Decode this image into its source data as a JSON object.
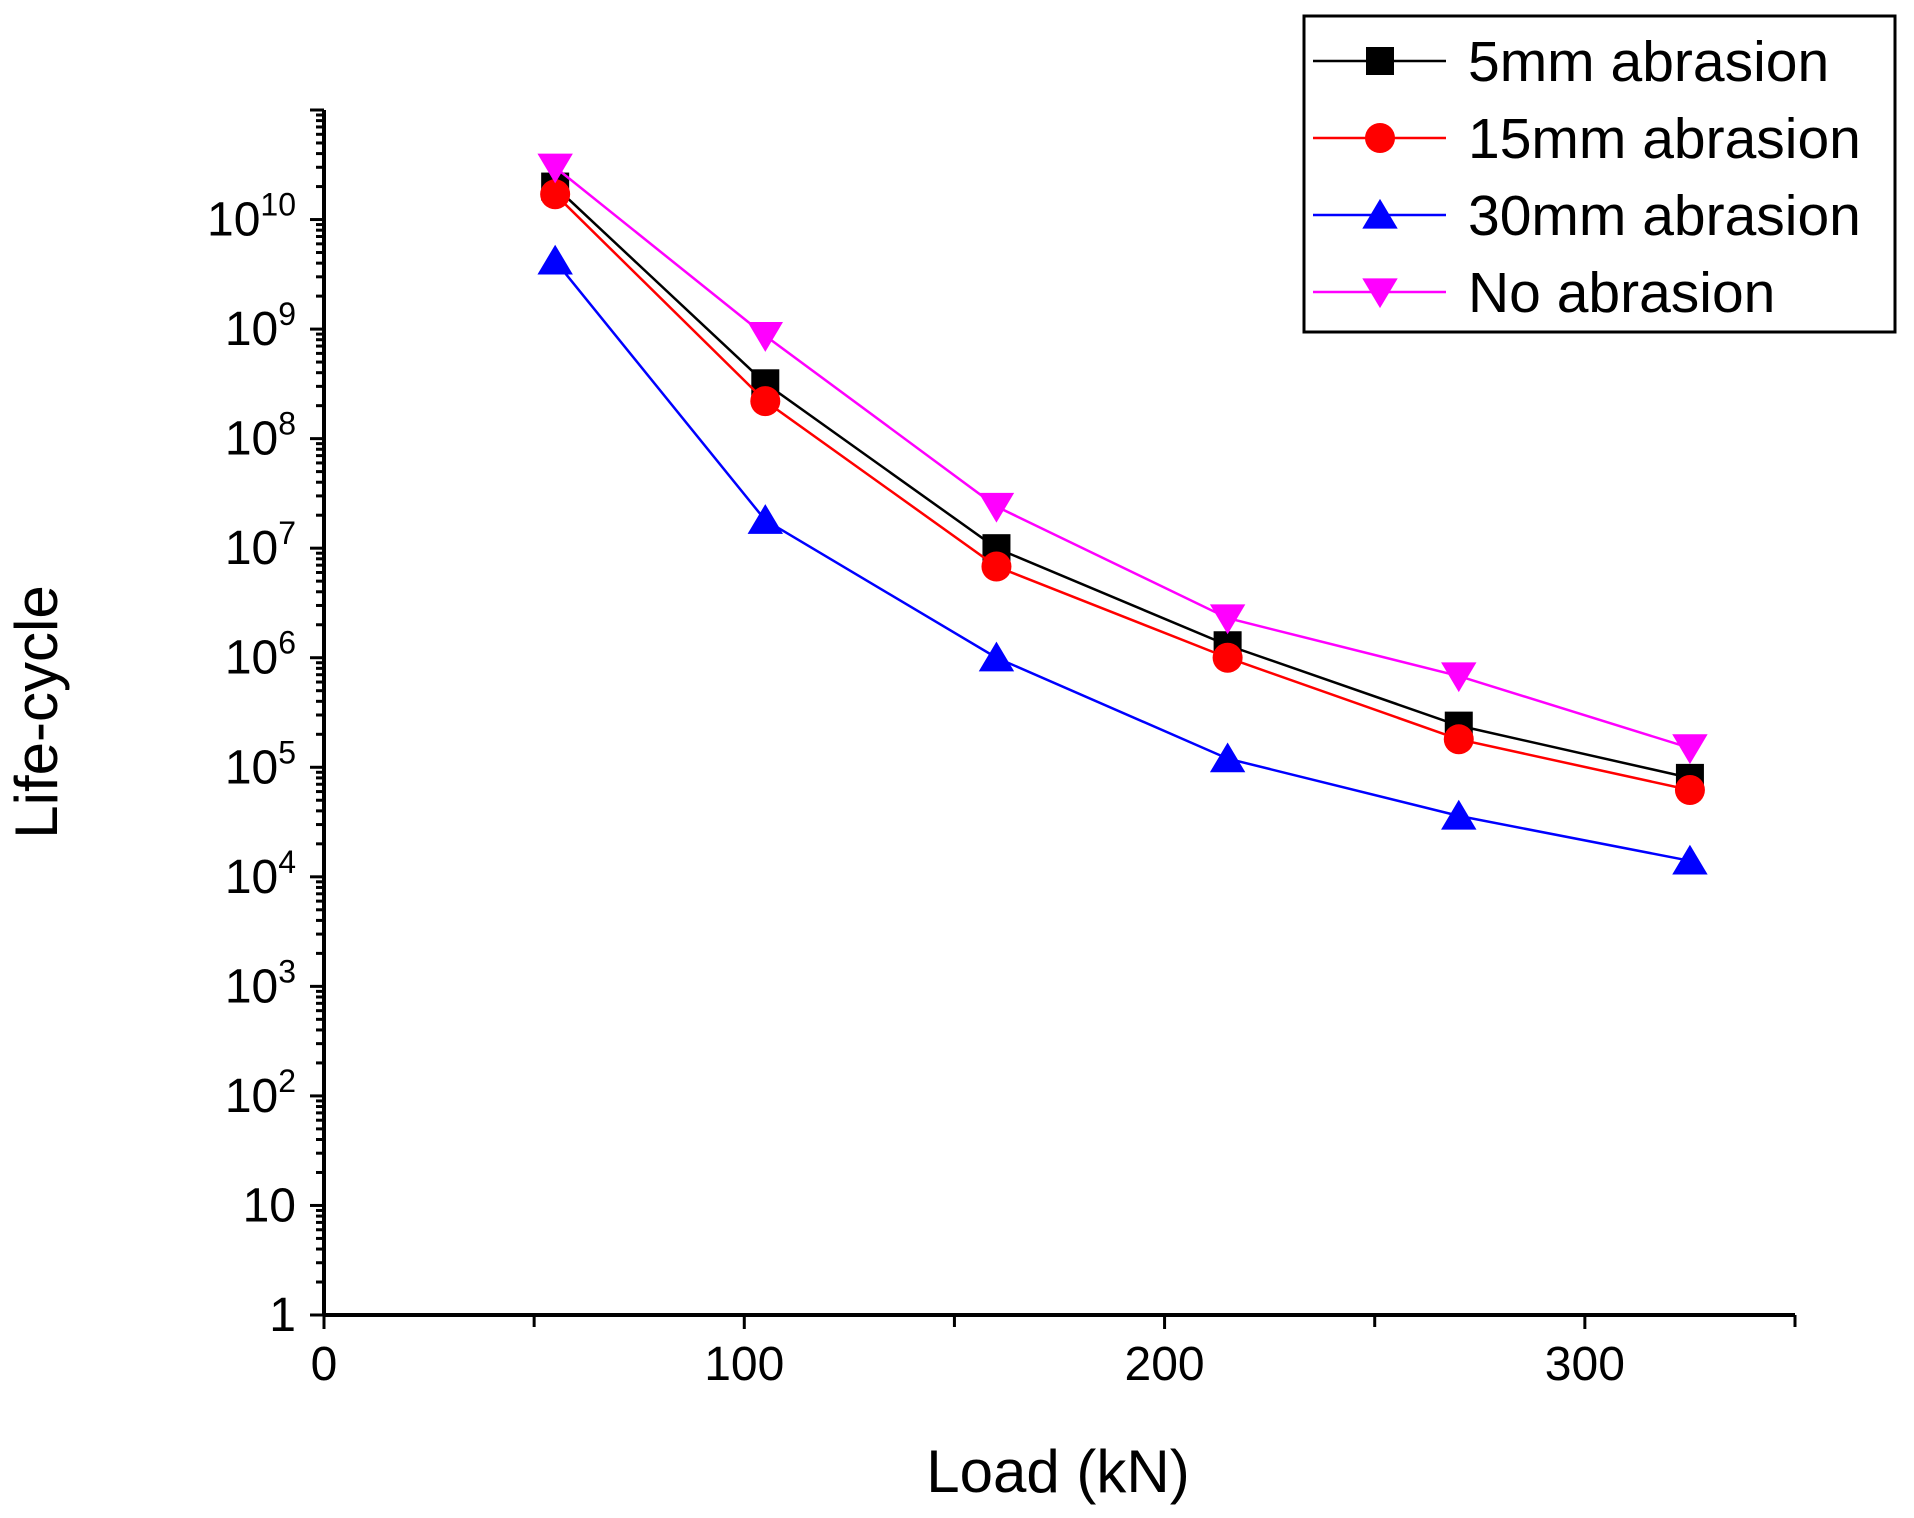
{
  "chart_data": {
    "type": "line",
    "title": "",
    "xlabel": "Load (kN)",
    "ylabel": "Life-cycle",
    "x_scale": "linear",
    "y_scale": "log",
    "xlim": [
      0,
      350
    ],
    "ylim": [
      1,
      100000000000
    ],
    "x_ticks": [
      {
        "value": 0,
        "label": "0"
      },
      {
        "value": 100,
        "label": "100"
      },
      {
        "value": 200,
        "label": "200"
      },
      {
        "value": 300,
        "label": "300"
      }
    ],
    "y_ticks": [
      {
        "value": 1,
        "base": "1",
        "exp": ""
      },
      {
        "value": 10,
        "base": "10",
        "exp": ""
      },
      {
        "value": 100,
        "base": "10",
        "exp": "2"
      },
      {
        "value": 1000,
        "base": "10",
        "exp": "3"
      },
      {
        "value": 10000,
        "base": "10",
        "exp": "4"
      },
      {
        "value": 100000,
        "base": "10",
        "exp": "5"
      },
      {
        "value": 1000000,
        "base": "10",
        "exp": "6"
      },
      {
        "value": 10000000,
        "base": "10",
        "exp": "7"
      },
      {
        "value": 100000000,
        "base": "10",
        "exp": "8"
      },
      {
        "value": 1000000000,
        "base": "10",
        "exp": "9"
      },
      {
        "value": 10000000000,
        "base": "10",
        "exp": "10"
      }
    ],
    "grid": false,
    "legend_position": "top-right",
    "series": [
      {
        "name": "5mm abrasion",
        "color": "#000000",
        "marker": "square",
        "x": [
          55,
          105,
          160,
          215,
          270,
          325
        ],
        "values": [
          20000000000,
          320000000,
          10000000,
          1300000,
          240000,
          80000
        ]
      },
      {
        "name": "15mm abrasion",
        "color": "#ff0000",
        "marker": "circle",
        "x": [
          55,
          105,
          160,
          215,
          270,
          325
        ],
        "values": [
          17000000000,
          220000000,
          6800000,
          1000000,
          180000,
          62000
        ]
      },
      {
        "name": "30mm abrasion",
        "color": "#0000ff",
        "marker": "triangle-up",
        "x": [
          55,
          105,
          160,
          215,
          270,
          325
        ],
        "values": [
          4200000000,
          18000000,
          1000000,
          120000,
          36000,
          14000
        ]
      },
      {
        "name": "No abrasion",
        "color": "#ff00ff",
        "marker": "triangle-down",
        "x": [
          55,
          105,
          160,
          215,
          270,
          325
        ],
        "values": [
          30000000000,
          870000000,
          24000000,
          2300000,
          680000,
          150000
        ]
      }
    ]
  }
}
